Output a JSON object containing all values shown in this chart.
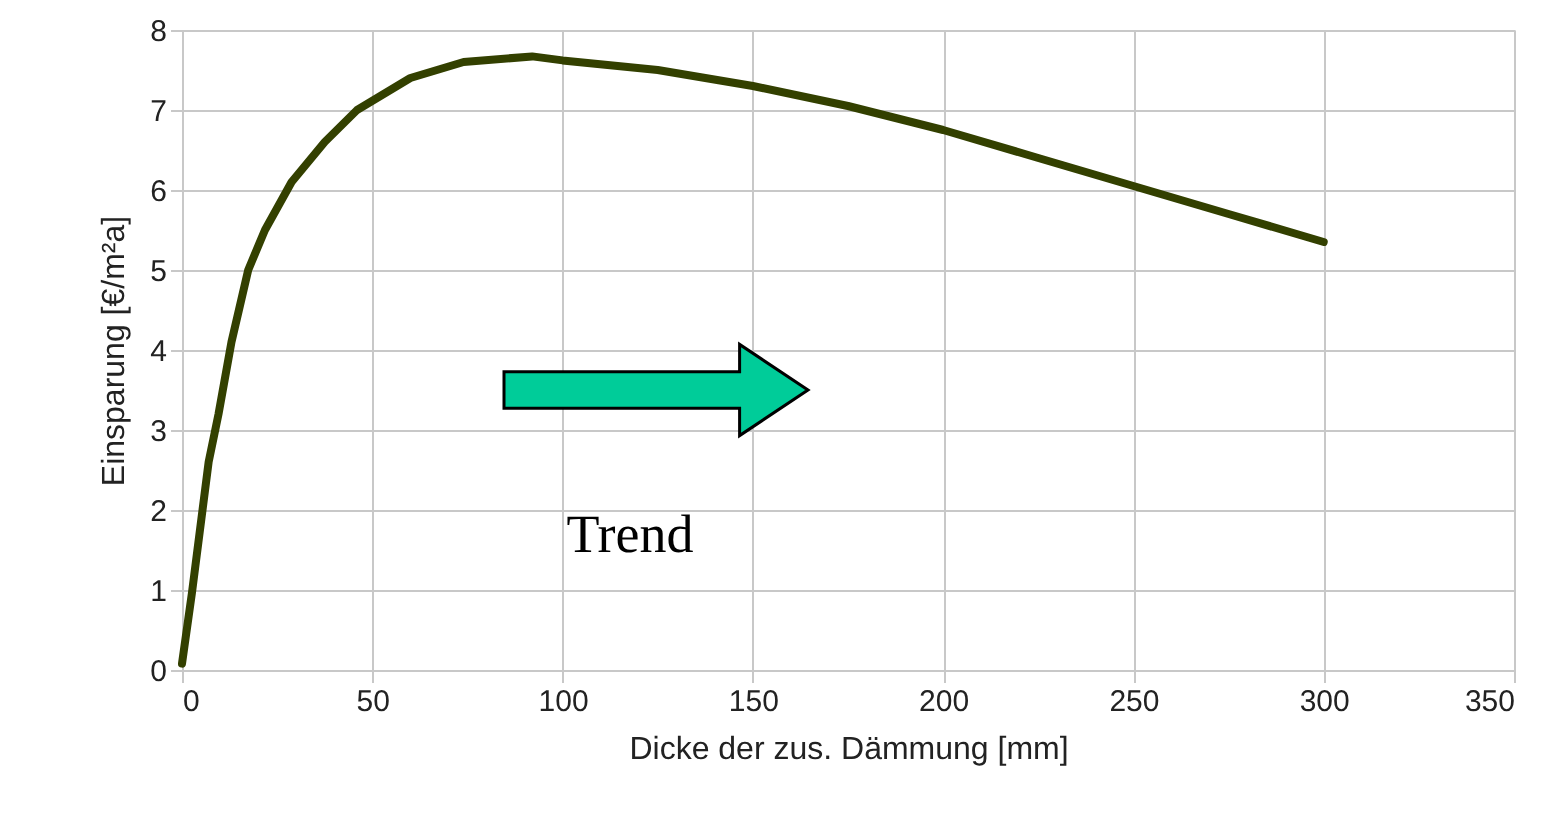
{
  "chart_data": {
    "type": "line",
    "xlabel": "Dicke der zus. Dämmung [mm]",
    "ylabel": "Einsparung [€/m²a]",
    "xlim": [
      0,
      350
    ],
    "xticks": [
      0,
      50,
      100,
      150,
      200,
      250,
      300,
      350
    ],
    "ylim": [
      0,
      8
    ],
    "yticks": [
      0,
      1,
      2,
      3,
      4,
      5,
      6,
      7,
      8
    ],
    "grid": true,
    "marker": "none",
    "line_style": "solid",
    "annotations": [
      "Trend"
    ],
    "series": [
      {
        "color": "#334000",
        "x": [
          0,
          2.6,
          7,
          9.6,
          13,
          17.4,
          21.8,
          28.8,
          37.5,
          46,
          60,
          74,
          92,
          100,
          125,
          150,
          175,
          200,
          225,
          250,
          275,
          300
        ],
        "values": [
          0.08,
          0.96,
          2.6,
          3.2,
          4.1,
          5.0,
          5.5,
          6.1,
          6.6,
          7.0,
          7.4,
          7.6,
          7.67,
          7.62,
          7.5,
          7.3,
          7.05,
          6.75,
          6.4,
          6.05,
          5.7,
          5.35
        ]
      }
    ]
  }
}
